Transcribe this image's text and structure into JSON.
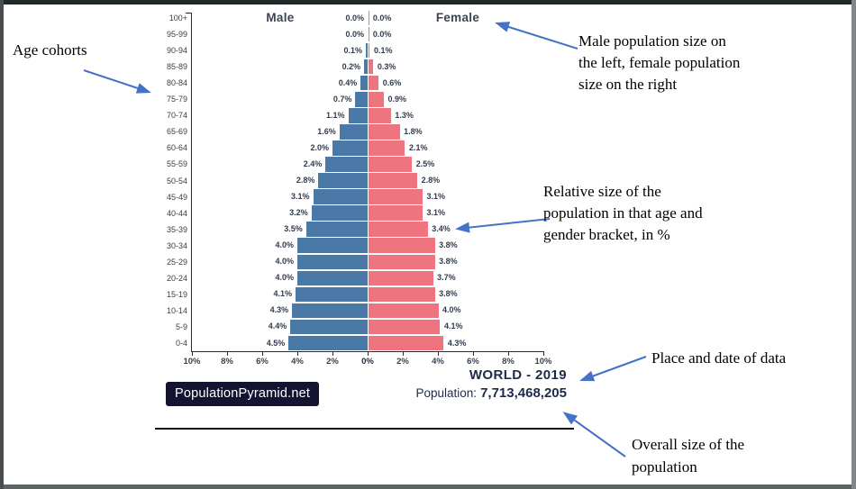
{
  "chart_data": {
    "type": "bar",
    "subtype": "population-pyramid",
    "title": "WORLD - 2019",
    "categories": [
      "100+",
      "95-99",
      "90-94",
      "85-89",
      "80-84",
      "75-79",
      "70-74",
      "65-69",
      "60-64",
      "55-59",
      "50-54",
      "45-49",
      "40-44",
      "35-39",
      "30-34",
      "25-29",
      "20-24",
      "15-19",
      "10-14",
      "5-9",
      "0-4"
    ],
    "series": [
      {
        "name": "Male",
        "side": "left",
        "color": "#4a79a8",
        "values": [
          0.0,
          0.0,
          0.1,
          0.2,
          0.4,
          0.7,
          1.1,
          1.6,
          2.0,
          2.4,
          2.8,
          3.1,
          3.2,
          3.5,
          4.0,
          4.0,
          4.0,
          4.1,
          4.3,
          4.4,
          4.5
        ]
      },
      {
        "name": "Female",
        "side": "right",
        "color": "#ee7480",
        "values": [
          0.0,
          0.0,
          0.1,
          0.3,
          0.6,
          0.9,
          1.3,
          1.8,
          2.1,
          2.5,
          2.8,
          3.1,
          3.1,
          3.4,
          3.8,
          3.8,
          3.7,
          3.8,
          4.0,
          4.1,
          4.3
        ]
      }
    ],
    "value_suffix": "%",
    "x_ticks": [
      "10%",
      "8%",
      "6%",
      "4%",
      "2%",
      "0%",
      "2%",
      "4%",
      "6%",
      "8%",
      "10%"
    ],
    "xlim_each_side": [
      0,
      10
    ],
    "grid": false,
    "legend_position": "top-inside"
  },
  "chart": {
    "male_header": "Male",
    "female_header": "Female",
    "watermark": "PopulationPyramid.net",
    "place_date": "WORLD - 2019",
    "population_label": "Population:",
    "population_value": "7,713,468,205"
  },
  "annotations": {
    "age_cohorts": "Age cohorts",
    "male_female": "Male population size on\nthe left, female population\nsize on the right",
    "relative_size": "Relative size of the\npopulation in that age and\ngender bracket, in %",
    "place_date": "Place and date of data",
    "overall_size": "Overall size of the\npopulation"
  },
  "colors": {
    "male_bar": "#4a79a8",
    "female_bar": "#ee7480",
    "arrow": "#4472c4",
    "badge_bg": "#141332",
    "title_text": "#1d2b49"
  }
}
